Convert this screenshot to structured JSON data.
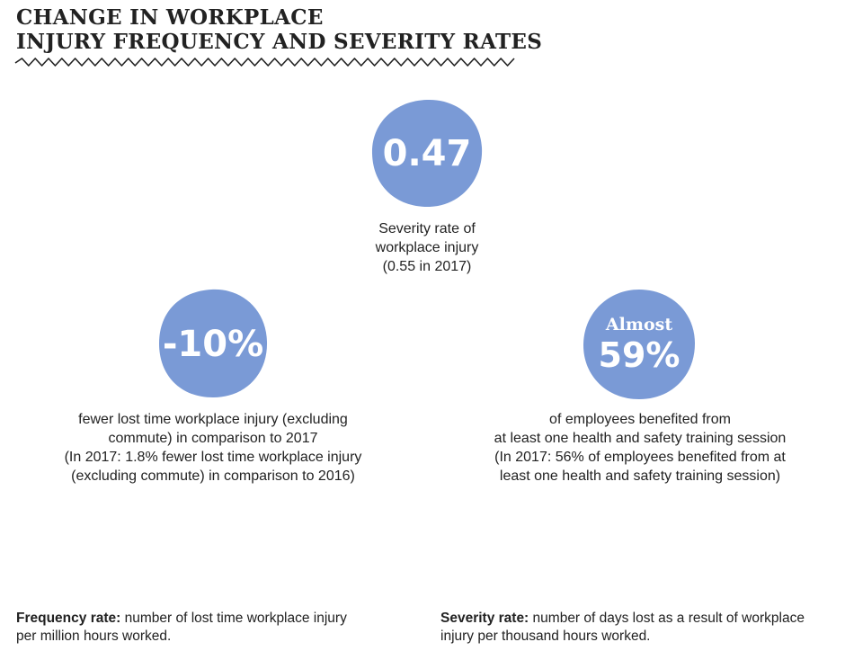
{
  "title": {
    "line1": "CHANGE IN WORKPLACE",
    "line2": "INJURY FREQUENCY AND SEVERITY RATES"
  },
  "colors": {
    "blob": "#7a9ad6",
    "text": "#222222"
  },
  "severity": {
    "value": "0.47",
    "caption": [
      "Severity rate of",
      "workplace injury",
      "(0.55 in 2017)"
    ]
  },
  "frequency": {
    "value": "-10%",
    "caption": [
      "fewer lost time workplace injury (excluding",
      "commute) in comparison to 2017",
      "(In 2017: 1.8% fewer lost time workplace injury",
      "(excluding commute) in comparison to 2016)"
    ]
  },
  "training": {
    "prefix": "Almost",
    "value": "59%",
    "caption": [
      "of employees benefited from",
      "at least one health and safety training session",
      "(In 2017: 56% of employees benefited from at",
      "least one health and safety training session)"
    ]
  },
  "definitions": {
    "frequency": {
      "term": "Frequency rate:",
      "text": " number of lost time workplace injury per million hours worked."
    },
    "severity": {
      "term": "Severity rate:",
      "text": " number of days lost as a result of workplace injury per thousand hours worked."
    }
  }
}
